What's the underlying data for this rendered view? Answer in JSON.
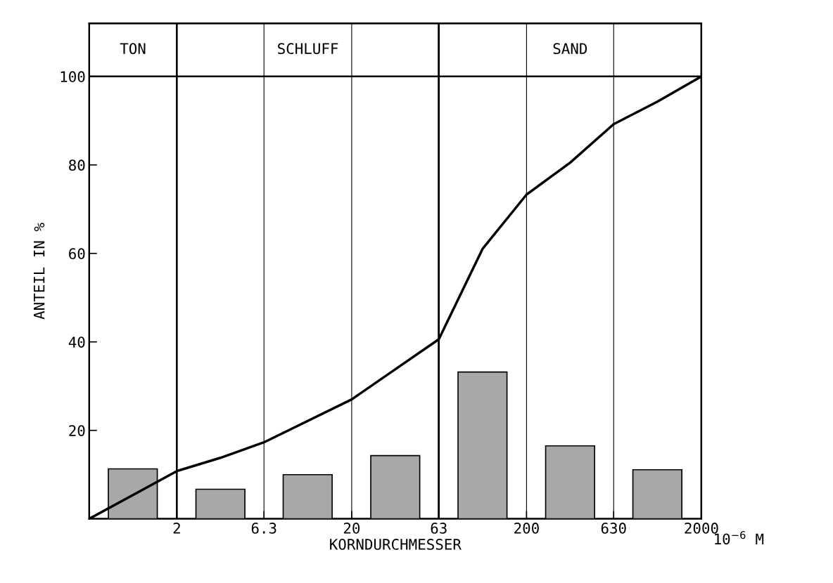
{
  "chart_data": {
    "type": "bar",
    "xlabel": "KORNDURCHMESSER",
    "ylabel": "ANTEIL IN %",
    "log": "x",
    "xlim": [
      0.63,
      2000
    ],
    "xticks": [
      2,
      6.3,
      20,
      63,
      200,
      630,
      2000
    ],
    "ylim": [
      0,
      112
    ],
    "yticks": [
      20,
      40,
      60,
      80,
      100
    ],
    "grid": "x",
    "series": [
      {
        "color": "#a8a8a8",
        "x": [
          1.12,
          3.55,
          11.2,
          35.5,
          112,
          355,
          1120
        ],
        "values": [
          11.3,
          6.7,
          10,
          14.3,
          33.2,
          16.5,
          11.1
        ]
      },
      {
        "type": "line",
        "color": "#000000",
        "x": [
          0.63,
          2,
          3.55,
          6.3,
          20,
          63,
          112,
          200,
          355,
          630,
          1120,
          2000
        ],
        "values": [
          0,
          10.8,
          13.8,
          17.3,
          27,
          40.6,
          61,
          73.3,
          80.5,
          89.2,
          94.3,
          100
        ]
      }
    ],
    "ref_lines": [
      {
        "axis": "y",
        "value": 100,
        "color": "#000000"
      }
    ],
    "bands": [
      {
        "axis": "x",
        "from": 0.63,
        "to": 2,
        "label": "TON",
        "color": "#ffffff"
      },
      {
        "axis": "x",
        "from": 2,
        "to": 63,
        "label": "SCHLUFF",
        "color": "#ffffff"
      },
      {
        "axis": "x",
        "from": 63,
        "to": 2000,
        "label": "SAND",
        "color": "#ffffff"
      }
    ],
    "annotations": [
      "10$^{−6}$ M"
    ]
  }
}
